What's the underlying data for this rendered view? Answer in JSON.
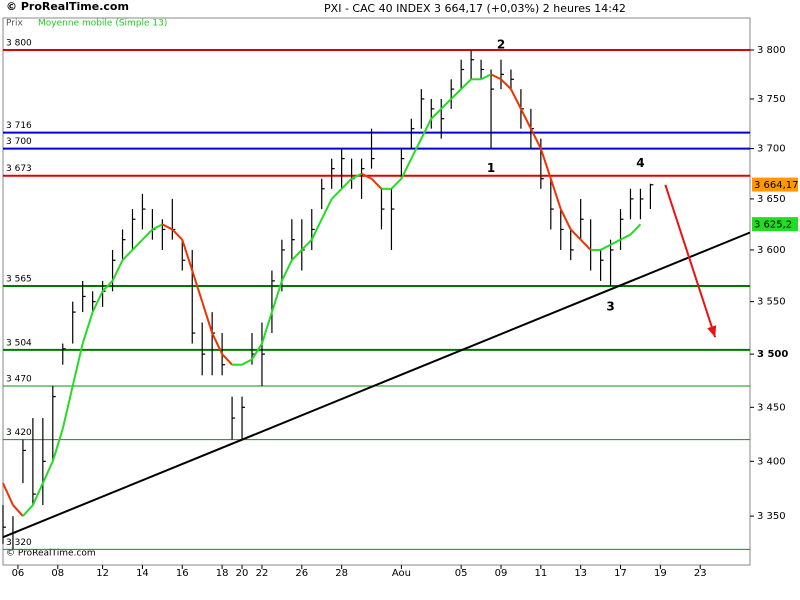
{
  "chart_data": {
    "type": "ohlc",
    "brand": "© ProRealTime.com",
    "title": "PXI - CAC 40 INDEX    3 664,17 (+0,03%)    2 heures  14:42",
    "price_label": "Prix",
    "log_scale": true,
    "ylim": [
      3306,
      3833
    ],
    "xlim": [
      0,
      150
    ],
    "bar_color": "#000000",
    "x": [
      0,
      2,
      4,
      6,
      8,
      10,
      12,
      14,
      16,
      18,
      20,
      22,
      24,
      26,
      28,
      30,
      32,
      34,
      36,
      38,
      40,
      42,
      44,
      46,
      48,
      50,
      52,
      54,
      56,
      58,
      60,
      62,
      64,
      66,
      68,
      70,
      72,
      74,
      76,
      78,
      80,
      82,
      84,
      86,
      88,
      90,
      92,
      94,
      96,
      98,
      100,
      102,
      104,
      106,
      108,
      110,
      112,
      114,
      116,
      118,
      120,
      122,
      124,
      126,
      128,
      130
    ],
    "high": [
      3360,
      3350,
      3420,
      3440,
      3440,
      3470,
      3510,
      3550,
      3570,
      3560,
      3570,
      3600,
      3620,
      3640,
      3655,
      3640,
      3630,
      3650,
      3610,
      3600,
      3530,
      3540,
      3520,
      3460,
      3460,
      3520,
      3530,
      3580,
      3610,
      3630,
      3630,
      3640,
      3670,
      3690,
      3700,
      3690,
      3690,
      3720,
      3660,
      3660,
      3700,
      3730,
      3760,
      3750,
      3750,
      3770,
      3790,
      3800,
      3790,
      3780,
      3790,
      3780,
      3760,
      3740,
      3710,
      3670,
      3640,
      3620,
      3650,
      3630,
      3600,
      3610,
      3640,
      3660,
      3660,
      3665
    ],
    "low": [
      3325,
      3320,
      3380,
      3360,
      3360,
      3400,
      3490,
      3510,
      3540,
      3540,
      3545,
      3560,
      3590,
      3600,
      3620,
      3610,
      3600,
      3610,
      3580,
      3510,
      3480,
      3480,
      3480,
      3420,
      3420,
      3490,
      3470,
      3520,
      3560,
      3590,
      3580,
      3600,
      3640,
      3660,
      3660,
      3660,
      3650,
      3680,
      3620,
      3600,
      3670,
      3700,
      3720,
      3720,
      3710,
      3740,
      3760,
      3770,
      3770,
      3700,
      3760,
      3760,
      3720,
      3700,
      3660,
      3620,
      3600,
      3590,
      3610,
      3580,
      3570,
      3565,
      3600,
      3630,
      3630,
      3640
    ],
    "close": [
      3340,
      3335,
      3410,
      3370,
      3400,
      3460,
      3505,
      3540,
      3555,
      3550,
      3560,
      3590,
      3610,
      3630,
      3640,
      3620,
      3620,
      3620,
      3590,
      3520,
      3500,
      3520,
      3490,
      3440,
      3450,
      3500,
      3500,
      3570,
      3600,
      3610,
      3600,
      3620,
      3660,
      3680,
      3690,
      3670,
      3680,
      3690,
      3640,
      3640,
      3690,
      3720,
      3750,
      3740,
      3730,
      3760,
      3780,
      3790,
      3780,
      3760,
      3775,
      3770,
      3740,
      3720,
      3670,
      3640,
      3620,
      3600,
      3630,
      3600,
      3590,
      3600,
      3630,
      3650,
      3650,
      3664
    ],
    "moving_average": {
      "name": "Moyenne mobile (Simple 13)",
      "up_color": "#22dd22",
      "down_color": "#ee3300",
      "values": [
        3380,
        3360,
        3350,
        3360,
        3380,
        3400,
        3430,
        3470,
        3510,
        3540,
        3560,
        3570,
        3590,
        3600,
        3610,
        3620,
        3625,
        3620,
        3610,
        3580,
        3550,
        3520,
        3500,
        3490,
        3490,
        3495,
        3510,
        3540,
        3570,
        3590,
        3600,
        3610,
        3630,
        3650,
        3660,
        3670,
        3675,
        3670,
        3660,
        3660,
        3670,
        3690,
        3710,
        3730,
        3740,
        3750,
        3760,
        3770,
        3770,
        3775,
        3770,
        3760,
        3740,
        3720,
        3700,
        3670,
        3640,
        3620,
        3610,
        3600,
        3600,
        3605,
        3610,
        3615,
        3625,
        null
      ]
    },
    "levels": [
      {
        "value": 3800,
        "label": "3 800",
        "color": "#e00000",
        "width": 2
      },
      {
        "value": 3716,
        "label": "3 716",
        "color": "#0000dd",
        "width": 2
      },
      {
        "value": 3700,
        "label": "3 700",
        "color": "#0000dd",
        "width": 2
      },
      {
        "value": 3673,
        "label": "3 673",
        "color": "#e00000",
        "width": 2
      },
      {
        "value": 3565,
        "label": "3 565",
        "color": "#007700",
        "width": 2
      },
      {
        "value": 3504,
        "label": "3 504",
        "color": "#007700",
        "width": 2
      },
      {
        "value": 3470,
        "label": "3 470",
        "color": "#009900",
        "width": 1
      },
      {
        "value": 3420,
        "label": "3 420",
        "color": "#009900",
        "width": 1
      },
      {
        "value": 3320,
        "label": "3 320",
        "color": "#009900",
        "width": 1
      }
    ],
    "yticks": [
      {
        "value": 3800,
        "label": "3 800"
      },
      {
        "value": 3750,
        "label": "3 750"
      },
      {
        "value": 3700,
        "label": "3 700"
      },
      {
        "value": 3650,
        "label": "3 650"
      },
      {
        "value": 3600,
        "label": "3 600"
      },
      {
        "value": 3550,
        "label": "3 550"
      },
      {
        "value": 3500,
        "label": "3 500"
      },
      {
        "value": 3450,
        "label": "3 450"
      },
      {
        "value": 3400,
        "label": "3 400"
      },
      {
        "value": 3350,
        "label": "3 350"
      }
    ],
    "xticks": [
      {
        "value": 3,
        "label": "06"
      },
      {
        "value": 11,
        "label": "08"
      },
      {
        "value": 20,
        "label": "12"
      },
      {
        "value": 28,
        "label": "14"
      },
      {
        "value": 36,
        "label": "16"
      },
      {
        "value": 44,
        "label": "18"
      },
      {
        "value": 48,
        "label": "20"
      },
      {
        "value": 52,
        "label": "22"
      },
      {
        "value": 60,
        "label": "26"
      },
      {
        "value": 68,
        "label": "28"
      },
      {
        "value": 80,
        "label": "Aou"
      },
      {
        "value": 92,
        "label": "05"
      },
      {
        "value": 100,
        "label": "09"
      },
      {
        "value": 108,
        "label": "11"
      },
      {
        "value": 116,
        "label": "13"
      },
      {
        "value": 124,
        "label": "17"
      },
      {
        "value": 132,
        "label": "19"
      },
      {
        "value": 140,
        "label": "23"
      }
    ],
    "last_price": {
      "value": 3664.17,
      "label": "3 664,17",
      "color": "#ff9900"
    },
    "last_ma": {
      "value": 3625.2,
      "label": "3 625,2",
      "color": "#22dd22"
    },
    "trendline": {
      "color": "#000000",
      "x": [
        0,
        150
      ],
      "y": [
        3331,
        3617
      ]
    },
    "arrow": {
      "color": "#ee1111",
      "x": [
        133,
        143
      ],
      "y": [
        3664,
        3516
      ]
    },
    "annotations": [
      {
        "text": "1",
        "x": 98,
        "y": 3680
      },
      {
        "text": "2",
        "x": 100,
        "y": 3805
      },
      {
        "text": "3",
        "x": 122,
        "y": 3545
      },
      {
        "text": "4",
        "x": 128,
        "y": 3685
      }
    ]
  }
}
